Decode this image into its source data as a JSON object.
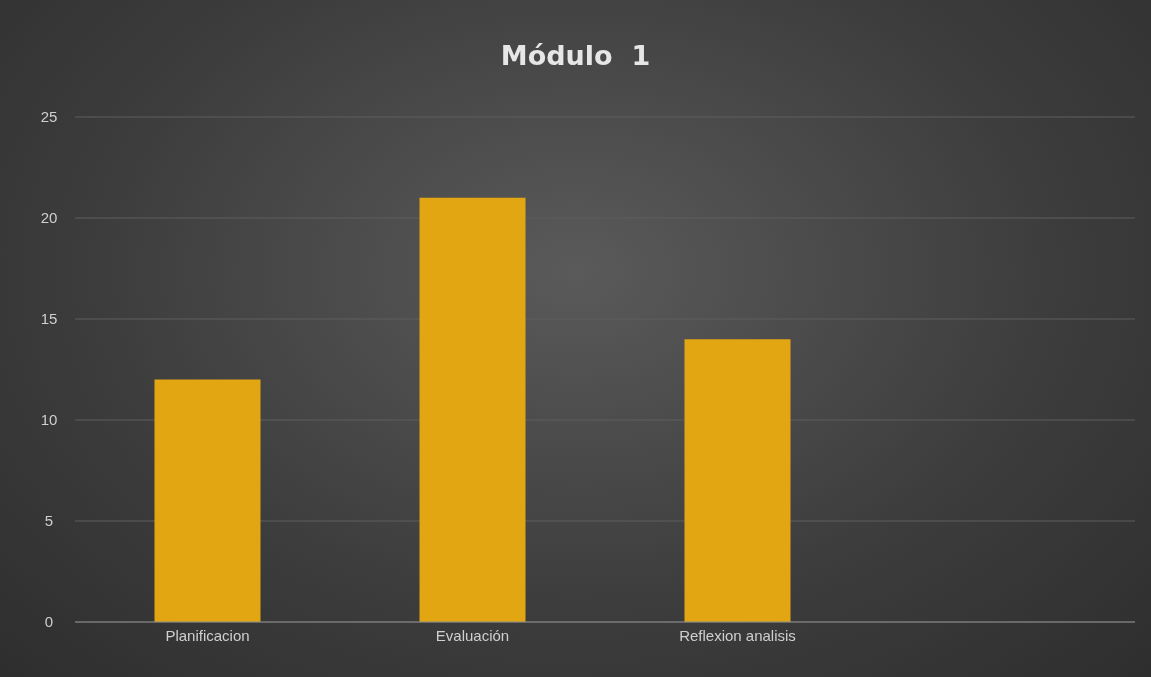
{
  "chart_data": {
    "type": "bar",
    "title": "Módulo  1",
    "categories": [
      "Planificacion",
      "Evaluación",
      "Reflexion analisis",
      null
    ],
    "values": [
      12,
      21,
      14,
      null
    ],
    "color": "#e2a612",
    "ylim": [
      0,
      25
    ],
    "yticks": [
      0,
      5,
      10,
      15,
      20,
      25
    ],
    "grid": "y"
  }
}
